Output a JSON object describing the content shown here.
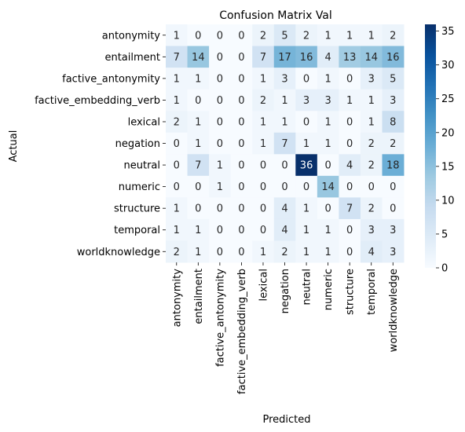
{
  "chart_data": {
    "type": "heatmap",
    "title": "Confusion Matrix Val",
    "xlabel": "Predicted",
    "ylabel": "Actual",
    "row_labels": [
      "antonymity",
      "entailment",
      "factive_antonymity",
      "factive_embedding_verb",
      "lexical",
      "negation",
      "neutral",
      "numeric",
      "structure",
      "temporal",
      "worldknowledge"
    ],
    "col_labels": [
      "antonymity",
      "entailment",
      "factive_antonymity",
      "factive_embedding_verb",
      "lexical",
      "negation",
      "neutral",
      "numeric",
      "structure",
      "temporal",
      "worldknowledge"
    ],
    "values": [
      [
        1,
        0,
        0,
        0,
        2,
        5,
        2,
        1,
        1,
        1,
        2
      ],
      [
        7,
        14,
        0,
        0,
        7,
        17,
        16,
        4,
        13,
        14,
        16
      ],
      [
        1,
        1,
        0,
        0,
        1,
        3,
        0,
        1,
        0,
        3,
        5
      ],
      [
        1,
        0,
        0,
        0,
        2,
        1,
        3,
        3,
        1,
        1,
        3
      ],
      [
        2,
        1,
        0,
        0,
        1,
        1,
        0,
        1,
        0,
        1,
        8
      ],
      [
        0,
        1,
        0,
        0,
        1,
        7,
        1,
        1,
        0,
        2,
        2
      ],
      [
        0,
        7,
        1,
        0,
        0,
        0,
        36,
        0,
        4,
        2,
        18
      ],
      [
        0,
        0,
        1,
        0,
        0,
        0,
        0,
        14,
        0,
        0,
        0
      ],
      [
        1,
        0,
        0,
        0,
        0,
        4,
        1,
        0,
        7,
        2,
        0
      ],
      [
        1,
        1,
        0,
        0,
        0,
        4,
        1,
        1,
        0,
        3,
        3
      ],
      [
        2,
        1,
        0,
        0,
        1,
        2,
        1,
        1,
        0,
        4,
        3
      ]
    ],
    "colorbar": {
      "colormap": "Blues",
      "min": 0,
      "max": 36,
      "ticks": [
        0,
        5,
        10,
        15,
        20,
        25,
        30,
        35
      ],
      "tick_labels": [
        "0",
        "5",
        "10",
        "15",
        "20",
        "25",
        "30",
        "35"
      ]
    }
  }
}
